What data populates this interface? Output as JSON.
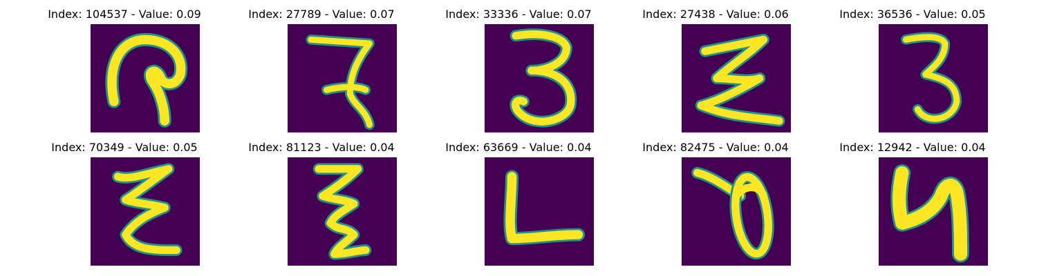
{
  "figure": {
    "cmap": "viridis",
    "background_color": "#440154",
    "stroke_color": "#fde725",
    "edge_color": "#21918c"
  },
  "panels": [
    {
      "index": 104537,
      "value": 0.09,
      "title": "Index: 104537 - Value: 0.09"
    },
    {
      "index": 27789,
      "value": 0.07,
      "title": "Index: 27789 - Value: 0.07"
    },
    {
      "index": 33336,
      "value": 0.07,
      "title": "Index: 33336 - Value: 0.07"
    },
    {
      "index": 27438,
      "value": 0.06,
      "title": "Index: 27438 - Value: 0.06"
    },
    {
      "index": 36536,
      "value": 0.05,
      "title": "Index: 36536 - Value: 0.05"
    },
    {
      "index": 70349,
      "value": 0.05,
      "title": "Index: 70349 - Value: 0.05"
    },
    {
      "index": 81123,
      "value": 0.04,
      "title": "Index: 81123 - Value: 0.04"
    },
    {
      "index": 63669,
      "value": 0.04,
      "title": "Index: 63669 - Value: 0.04"
    },
    {
      "index": 82475,
      "value": 0.04,
      "title": "Index: 82475 - Value: 0.04"
    },
    {
      "index": 12942,
      "value": 0.04,
      "title": "Index: 12942 - Value: 0.04"
    }
  ]
}
